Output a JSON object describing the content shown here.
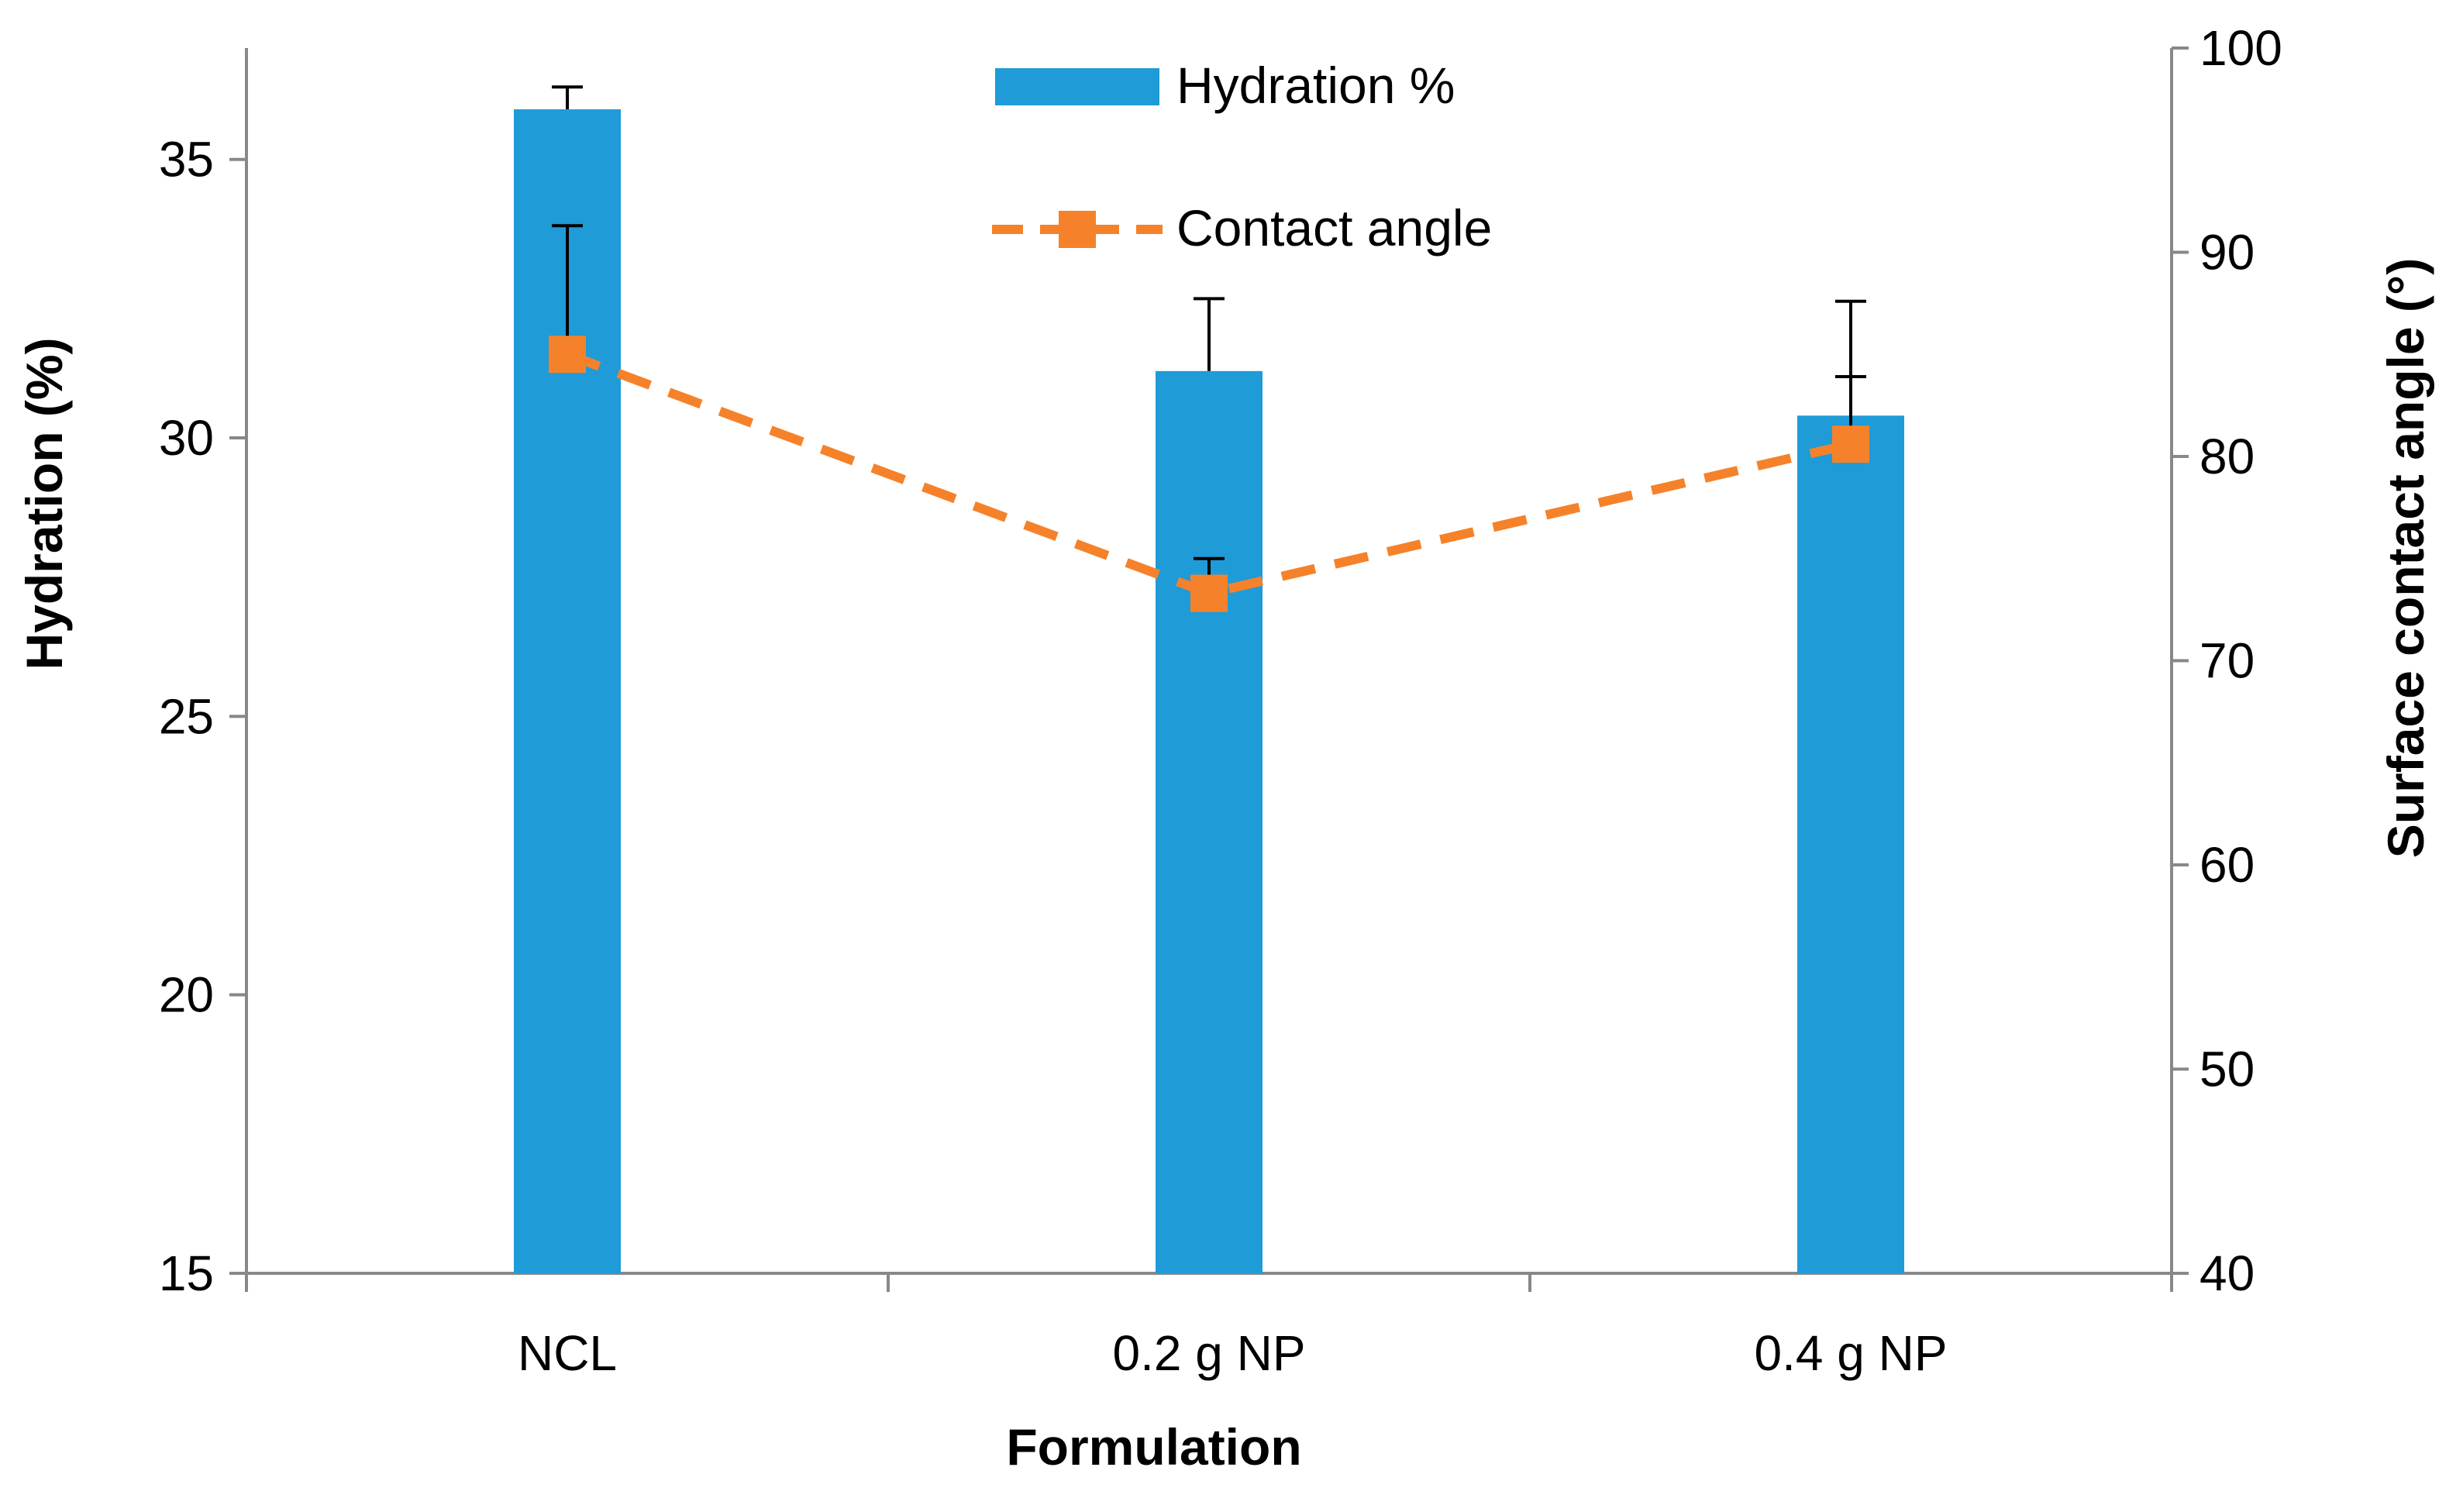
{
  "chart_data": {
    "type": "bar",
    "title": "",
    "xlabel": "Formulation",
    "ylabel": "Hydration (%)",
    "y2label": "Surface contact angle (°)",
    "categories": [
      "NCL",
      "0.2 g NP",
      "0.4 g NP"
    ],
    "ylim": [
      15,
      37
    ],
    "yticks": [
      15,
      20,
      25,
      30,
      35
    ],
    "y2lim": [
      40,
      100
    ],
    "y2ticks": [
      40,
      50,
      60,
      70,
      80,
      90,
      100
    ],
    "series": [
      {
        "name": "Hydration %",
        "type": "bar",
        "axis": "left",
        "color": "#1f9bd7",
        "values": [
          35.9,
          31.2,
          30.4
        ],
        "error": [
          0.4,
          1.3,
          0.7
        ]
      },
      {
        "name": "Contact angle",
        "type": "line",
        "axis": "right",
        "style": "dashed",
        "marker": "square",
        "color": "#f5822a",
        "values": [
          85.0,
          73.3,
          80.6
        ],
        "error": [
          6.3,
          1.7,
          7.0
        ]
      }
    ],
    "legend": {
      "position": "top-center",
      "items": [
        "Hydration %",
        "Contact angle"
      ]
    },
    "grid": false
  }
}
